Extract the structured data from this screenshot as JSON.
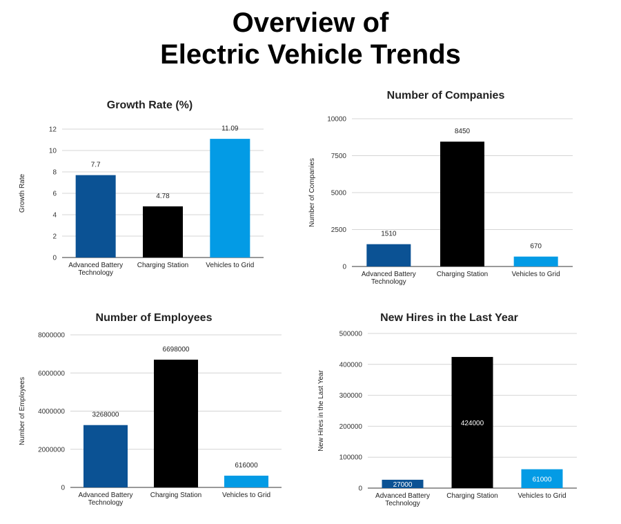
{
  "page": {
    "title_line1": "Overview of",
    "title_line2": "Electric Vehicle Trends"
  },
  "colors": {
    "advanced_battery": "#0b5294",
    "charging_station": "#000000",
    "vehicles_to_grid": "#039be5"
  },
  "chart_data": [
    {
      "id": "growth",
      "type": "bar",
      "title": "Growth Rate (%)",
      "ylabel": "Growth Rate",
      "xlabel": "",
      "categories": [
        [
          "Advanced Battery",
          "Technology"
        ],
        [
          "Charging Station"
        ],
        [
          "Vehicles to Grid"
        ]
      ],
      "values": [
        7.7,
        4.78,
        11.09
      ],
      "data_labels": [
        "7.7",
        "4.78",
        "11.09"
      ],
      "label_position": "above",
      "ylim": [
        0,
        12
      ],
      "yticks": [
        0,
        2,
        4,
        6,
        8,
        10,
        12
      ],
      "grid": true,
      "legend": "none",
      "colors": [
        "#0b5294",
        "#000000",
        "#039be5"
      ]
    },
    {
      "id": "companies",
      "type": "bar",
      "title": "Number of Companies",
      "ylabel": "Number of Companies",
      "xlabel": "",
      "categories": [
        [
          "Advanced Battery",
          "Technology"
        ],
        [
          "Charging Station"
        ],
        [
          "Vehicles to Grid"
        ]
      ],
      "values": [
        1510,
        8450,
        670
      ],
      "data_labels": [
        "1510",
        "8450",
        "670"
      ],
      "label_position": "above",
      "ylim": [
        0,
        10000
      ],
      "yticks": [
        0,
        2500,
        5000,
        7500,
        10000
      ],
      "grid": true,
      "legend": "none",
      "colors": [
        "#0b5294",
        "#000000",
        "#039be5"
      ]
    },
    {
      "id": "employees",
      "type": "bar",
      "title": "Number of Employees",
      "ylabel": "Number of Employees",
      "xlabel": "",
      "categories": [
        [
          "Advanced Battery",
          "Technology"
        ],
        [
          "Charging Station"
        ],
        [
          "Vehicles to Grid"
        ]
      ],
      "values": [
        3268000,
        6698000,
        616000
      ],
      "data_labels": [
        "3268000",
        "6698000",
        "616000"
      ],
      "label_position": "above",
      "ylim": [
        0,
        8000000
      ],
      "yticks": [
        0,
        2000000,
        4000000,
        6000000,
        8000000
      ],
      "grid": true,
      "legend": "none",
      "colors": [
        "#0b5294",
        "#000000",
        "#039be5"
      ]
    },
    {
      "id": "hires",
      "type": "bar",
      "title": "New Hires in the Last Year",
      "ylabel": "New Hires in the Last Year",
      "xlabel": "",
      "categories": [
        [
          "Advanced Battery",
          "Technology"
        ],
        [
          "Charging Station"
        ],
        [
          "Vehicles to Grid"
        ]
      ],
      "values": [
        27000,
        424000,
        61000
      ],
      "data_labels": [
        "27000",
        "424000",
        "61000"
      ],
      "label_position": "inside",
      "ylim": [
        0,
        500000
      ],
      "yticks": [
        0,
        100000,
        200000,
        300000,
        400000,
        500000
      ],
      "grid": true,
      "legend": "none",
      "colors": [
        "#0b5294",
        "#000000",
        "#039be5"
      ]
    }
  ]
}
